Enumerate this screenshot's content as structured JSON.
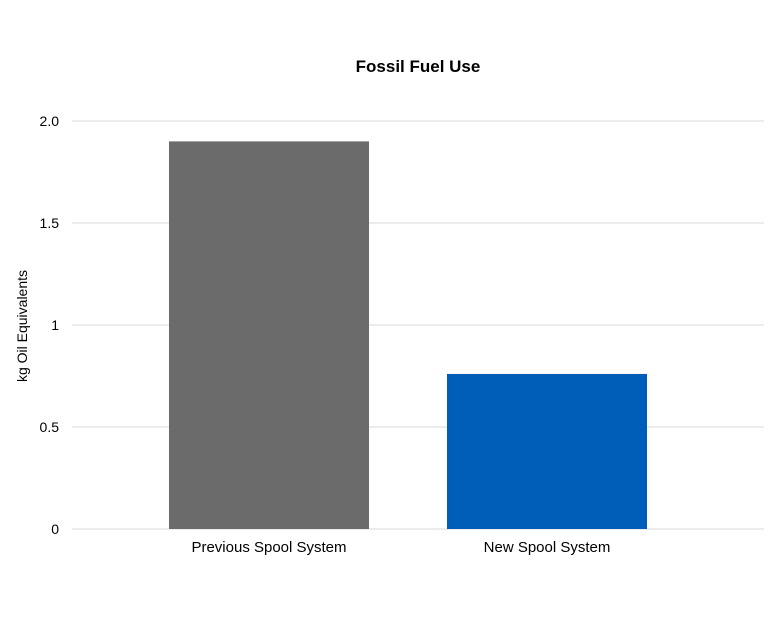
{
  "chart_data": {
    "type": "bar",
    "title": "Fossil Fuel Use",
    "xlabel": "",
    "ylabel": "kg Oil Equivalents",
    "categories": [
      "Previous Spool System",
      "New Spool System"
    ],
    "values": [
      1.9,
      0.76
    ],
    "ylim": [
      0,
      2
    ],
    "yticks": [
      0,
      0.5,
      1,
      1.5,
      2
    ],
    "ytick_labels": [
      "0",
      "0.5",
      "1",
      "1.5",
      "2.0"
    ],
    "bar_colors": [
      "#6b6b6b",
      "#005eb8"
    ],
    "grid": true,
    "legend": "none"
  }
}
